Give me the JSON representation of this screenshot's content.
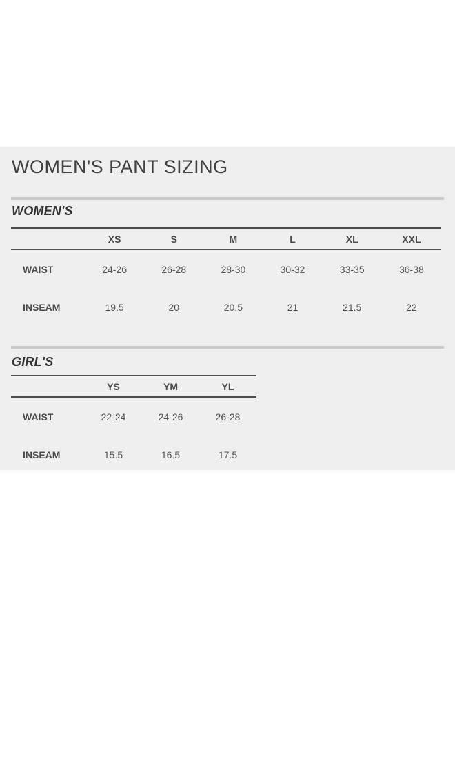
{
  "page": {
    "title": "WOMEN'S PANT SIZING"
  },
  "colors": {
    "panel_bg": "#efefef",
    "divider_light": "#c9c9c9",
    "divider_dark": "#4f4f4f",
    "title_text": "#414141",
    "heading_text": "#333333",
    "label_text": "#4a4a4a",
    "value_text": "#525252"
  },
  "sections": [
    {
      "id": "womens",
      "label": "WOMEN'S",
      "columns": [
        "XS",
        "S",
        "M",
        "L",
        "XL",
        "XXL"
      ],
      "rows": [
        {
          "label": "WAIST",
          "values": [
            "24-26",
            "26-28",
            "28-30",
            "30-32",
            "33-35",
            "36-38"
          ]
        },
        {
          "label": "INSEAM",
          "values": [
            "19.5",
            "20",
            "20.5",
            "21",
            "21.5",
            "22"
          ]
        }
      ]
    },
    {
      "id": "girls",
      "label": "GIRL'S",
      "columns": [
        "YS",
        "YM",
        "YL"
      ],
      "rows": [
        {
          "label": "WAIST",
          "values": [
            "22-24",
            "24-26",
            "26-28"
          ]
        },
        {
          "label": "INSEAM",
          "values": [
            "15.5",
            "16.5",
            "17.5"
          ]
        }
      ]
    }
  ]
}
